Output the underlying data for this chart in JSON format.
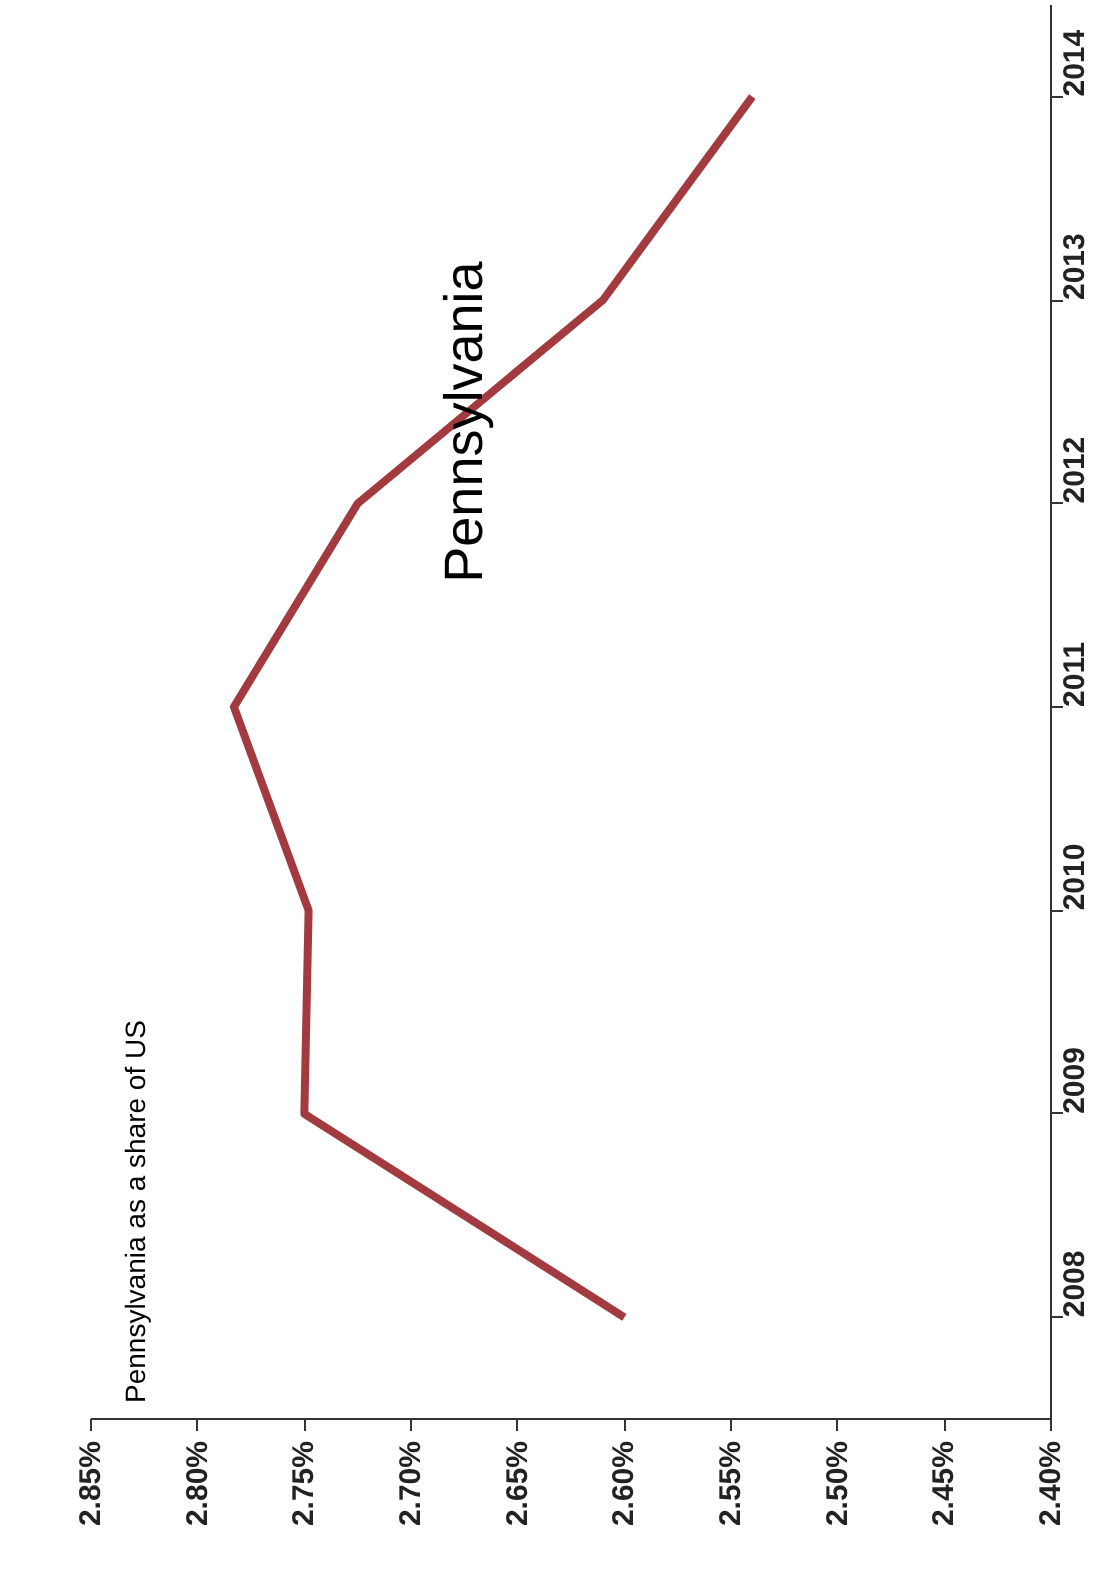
{
  "chart_data": {
    "type": "line",
    "orientation": "horizontal",
    "annotations": [
      "Pennsylvania as a share of US"
    ],
    "categories": [
      "2014",
      "2013",
      "2012",
      "2011",
      "2010",
      "2009",
      "2008"
    ],
    "series": [
      {
        "name": "Pennsylvania",
        "color": "#a33a3f",
        "values": [
          2.54,
          2.61,
          2.725,
          2.783,
          2.748,
          2.75,
          2.6
        ]
      }
    ],
    "xlim": [
      2.85,
      2.4
    ],
    "xticks": [
      {
        "value": 2.85,
        "label": "2.85%"
      },
      {
        "value": 2.8,
        "label": "2.80%"
      },
      {
        "value": 2.75,
        "label": "2.75%"
      },
      {
        "value": 2.7,
        "label": "2.70%"
      },
      {
        "value": 2.65,
        "label": "2.65%"
      },
      {
        "value": 2.6,
        "label": "2.60%"
      },
      {
        "value": 2.55,
        "label": "2.55%"
      },
      {
        "value": 2.5,
        "label": "2.50%"
      },
      {
        "value": 2.45,
        "label": "2.45%"
      },
      {
        "value": 2.4,
        "label": "2.40%"
      }
    ],
    "grid": false,
    "marker": "none",
    "line_style": "solid"
  }
}
